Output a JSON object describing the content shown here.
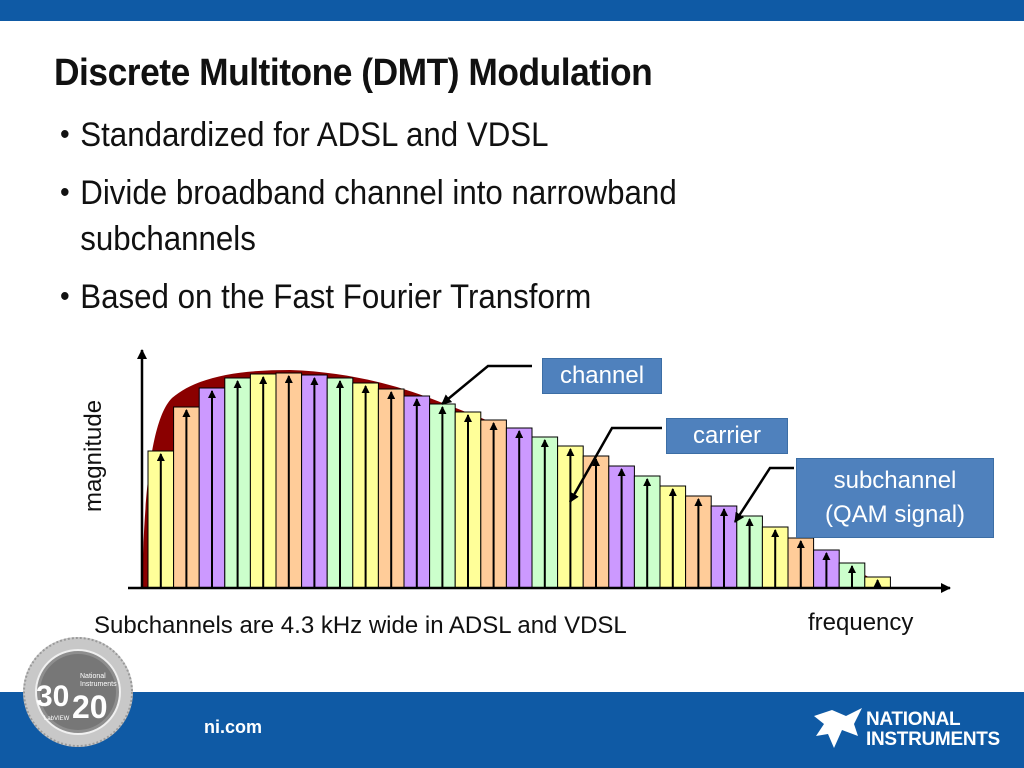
{
  "slide": {
    "title": "Discrete Multitone (DMT) Modulation",
    "bullets": [
      "Standardized for ADSL and VDSL",
      "Divide broadband channel into narrowband subchannels",
      "Based on the Fast Fourier Transform"
    ]
  },
  "diagram": {
    "callouts": {
      "channel": "channel",
      "carrier": "carrier",
      "subchannel": [
        "subchannel",
        "(QAM signal)"
      ]
    },
    "y_axis_label": "magnitude",
    "x_axis_label": "frequency",
    "footnote": "Subchannels are 4.3 kHz wide in ADSL and VDSL",
    "subchannel_count": 29,
    "subchannel_colors": [
      "#ffff99",
      "#ffcc99",
      "#cc99ff",
      "#ccffcc"
    ],
    "envelope_color": "#8b0000",
    "callout_color": "#4f81bd"
  },
  "footer": {
    "url": "ni.com",
    "logo_lines": [
      "NATIONAL",
      "INSTRUMENTS"
    ],
    "badge": {
      "big_numbers": [
        "30",
        "20"
      ],
      "small_text": [
        "National",
        "Instruments",
        "LabVIEW"
      ],
      "ring_text": "YEARS OF EXCELLENCE · YEARS OF INNOVATION"
    }
  },
  "colors": {
    "brand_blue": "#0f5aa5"
  },
  "icons": [
    "ni-eagle-logo-icon",
    "anniversary-badge-icon"
  ]
}
